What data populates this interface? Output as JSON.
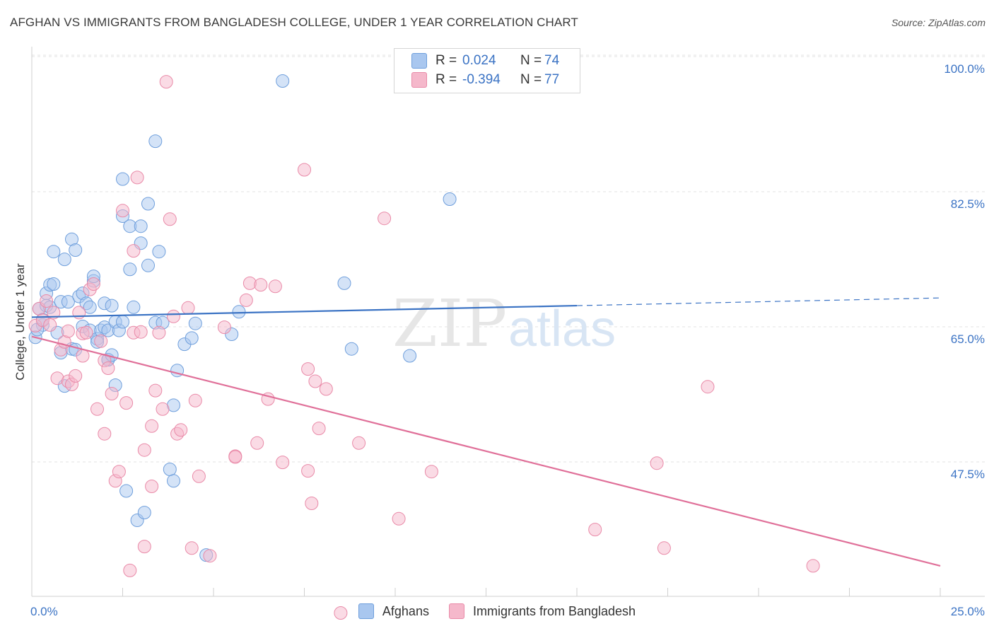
{
  "title": "AFGHAN VS IMMIGRANTS FROM BANGLADESH COLLEGE, UNDER 1 YEAR CORRELATION CHART",
  "source": "Source: ZipAtlas.com",
  "watermark": {
    "zip": "ZIP",
    "atlas": "atlas"
  },
  "legend": {
    "rows": [
      {
        "r_label": "R =",
        "r_value": "0.024",
        "n_label": "N =",
        "n_value": "74",
        "color": "#a9c7ef"
      },
      {
        "r_label": "R =",
        "r_value": "-0.394",
        "n_label": "N =",
        "n_value": "77",
        "color": "#f5b8cb"
      }
    ]
  },
  "bottom_legend": [
    {
      "label": "Afghans",
      "color": "#a9c7ef"
    },
    {
      "label": "Immigrants from Bangladesh",
      "color": "#f5b8cb"
    }
  ],
  "chart_data": {
    "type": "scatter",
    "title": "AFGHAN VS IMMIGRANTS FROM BANGLADESH COLLEGE, UNDER 1 YEAR CORRELATION CHART",
    "xlabel": "",
    "ylabel": "College, Under 1 year",
    "xlim": [
      0,
      25
    ],
    "ylim": [
      30,
      102
    ],
    "x_tick_labels": [
      "0.0%",
      "25.0%"
    ],
    "y_ticks": [
      47.5,
      65.0,
      82.5,
      100.0
    ],
    "y_tick_labels": [
      "47.5%",
      "65.0%",
      "82.5%",
      "100.0%"
    ],
    "grid": true,
    "series": [
      {
        "name": "Afghans",
        "color": "#a9c7ef",
        "stroke": "#6f9fdc",
        "trend": {
          "x": [
            0,
            15
          ],
          "y": [
            67.8,
            69.3
          ],
          "color": "#3b73c4",
          "dashed_extension": {
            "x": [
              15,
              25
            ],
            "y": [
              69.3,
              70.3
            ]
          }
        },
        "points": [
          [
            0.1,
            65.2
          ],
          [
            0.2,
            68.9
          ],
          [
            0.3,
            66.8
          ],
          [
            0.3,
            67.5
          ],
          [
            0.4,
            70.9
          ],
          [
            0.4,
            69.3
          ],
          [
            0.5,
            72.0
          ],
          [
            0.5,
            69.1
          ],
          [
            0.6,
            76.3
          ],
          [
            0.6,
            72.1
          ],
          [
            0.7,
            65.8
          ],
          [
            0.8,
            63.2
          ],
          [
            0.8,
            69.8
          ],
          [
            0.9,
            58.9
          ],
          [
            0.9,
            75.3
          ],
          [
            1.0,
            69.8
          ],
          [
            1.1,
            77.9
          ],
          [
            1.1,
            63.7
          ],
          [
            1.2,
            76.5
          ],
          [
            1.2,
            63.6
          ],
          [
            1.3,
            70.5
          ],
          [
            1.4,
            70.9
          ],
          [
            1.4,
            66.6
          ],
          [
            1.5,
            69.6
          ],
          [
            1.6,
            69.1
          ],
          [
            1.6,
            66.1
          ],
          [
            1.7,
            72.5
          ],
          [
            1.7,
            73.1
          ],
          [
            1.8,
            65.0
          ],
          [
            1.8,
            64.6
          ],
          [
            1.9,
            66.1
          ],
          [
            2.0,
            69.6
          ],
          [
            2.0,
            66.5
          ],
          [
            2.1,
            62.3
          ],
          [
            2.1,
            66.1
          ],
          [
            2.1,
            62.3
          ],
          [
            2.2,
            69.3
          ],
          [
            2.2,
            62.9
          ],
          [
            2.3,
            59.0
          ],
          [
            2.3,
            67.2
          ],
          [
            2.4,
            66.1
          ],
          [
            2.5,
            67.2
          ],
          [
            2.5,
            80.9
          ],
          [
            2.5,
            85.7
          ],
          [
            2.6,
            45.3
          ],
          [
            2.7,
            79.6
          ],
          [
            2.7,
            74.0
          ],
          [
            2.8,
            69.1
          ],
          [
            2.9,
            41.5
          ],
          [
            3.0,
            79.6
          ],
          [
            3.0,
            77.4
          ],
          [
            3.1,
            42.5
          ],
          [
            3.2,
            74.5
          ],
          [
            3.2,
            82.5
          ],
          [
            3.4,
            67.1
          ],
          [
            3.4,
            90.6
          ],
          [
            3.5,
            76.3
          ],
          [
            3.6,
            67.1
          ],
          [
            3.8,
            48.1
          ],
          [
            3.9,
            56.4
          ],
          [
            3.9,
            46.6
          ],
          [
            4.0,
            60.9
          ],
          [
            4.2,
            64.3
          ],
          [
            4.4,
            65.1
          ],
          [
            4.5,
            67.0
          ],
          [
            4.8,
            37.0
          ],
          [
            5.5,
            65.6
          ],
          [
            5.7,
            68.5
          ],
          [
            6.9,
            98.4
          ],
          [
            8.6,
            72.2
          ],
          [
            8.8,
            63.7
          ],
          [
            10.4,
            62.8
          ],
          [
            11.5,
            83.1
          ],
          [
            0.15,
            66.2
          ]
        ]
      },
      {
        "name": "Immigrants from Bangladesh",
        "color": "#f5b8cb",
        "stroke": "#e98aa8",
        "trend": {
          "x": [
            0,
            25
          ],
          "y": [
            65.3,
            35.6
          ],
          "color": "#e07099"
        },
        "points": [
          [
            0.1,
            66.7
          ],
          [
            0.2,
            68.9
          ],
          [
            0.3,
            67.4
          ],
          [
            0.4,
            69.9
          ],
          [
            0.5,
            66.8
          ],
          [
            0.6,
            68.4
          ],
          [
            0.7,
            59.9
          ],
          [
            0.8,
            63.6
          ],
          [
            0.9,
            64.6
          ],
          [
            1.0,
            66.0
          ],
          [
            1.0,
            59.5
          ],
          [
            1.1,
            59.1
          ],
          [
            1.2,
            60.2
          ],
          [
            1.3,
            68.4
          ],
          [
            1.4,
            62.8
          ],
          [
            1.4,
            65.7
          ],
          [
            1.5,
            65.8
          ],
          [
            1.6,
            71.4
          ],
          [
            1.7,
            72.1
          ],
          [
            1.8,
            55.9
          ],
          [
            1.9,
            64.7
          ],
          [
            2.0,
            52.7
          ],
          [
            2.0,
            62.2
          ],
          [
            2.1,
            61.2
          ],
          [
            2.2,
            57.9
          ],
          [
            2.3,
            46.6
          ],
          [
            2.4,
            47.8
          ],
          [
            2.5,
            81.6
          ],
          [
            2.6,
            56.7
          ],
          [
            2.7,
            35.0
          ],
          [
            2.8,
            76.4
          ],
          [
            2.8,
            65.8
          ],
          [
            2.9,
            85.9
          ],
          [
            3.0,
            65.9
          ],
          [
            3.1,
            38.1
          ],
          [
            3.1,
            50.6
          ],
          [
            3.3,
            53.7
          ],
          [
            3.3,
            45.9
          ],
          [
            3.4,
            58.3
          ],
          [
            3.5,
            65.8
          ],
          [
            3.6,
            55.9
          ],
          [
            3.7,
            98.3
          ],
          [
            3.8,
            80.5
          ],
          [
            3.9,
            67.9
          ],
          [
            4.0,
            52.7
          ],
          [
            4.1,
            53.2
          ],
          [
            4.3,
            69.0
          ],
          [
            4.4,
            37.9
          ],
          [
            4.5,
            57.0
          ],
          [
            4.6,
            47.2
          ],
          [
            4.9,
            36.9
          ],
          [
            5.3,
            66.5
          ],
          [
            5.6,
            49.8
          ],
          [
            5.6,
            49.7
          ],
          [
            5.9,
            70.0
          ],
          [
            6.0,
            72.2
          ],
          [
            6.2,
            51.5
          ],
          [
            6.3,
            72.0
          ],
          [
            6.5,
            57.2
          ],
          [
            6.7,
            71.8
          ],
          [
            6.9,
            49.0
          ],
          [
            7.5,
            86.9
          ],
          [
            7.6,
            47.9
          ],
          [
            7.6,
            61.1
          ],
          [
            7.7,
            43.7
          ],
          [
            7.8,
            59.5
          ],
          [
            7.9,
            53.4
          ],
          [
            8.1,
            58.5
          ],
          [
            8.5,
            29.5
          ],
          [
            9.0,
            51.5
          ],
          [
            9.7,
            80.6
          ],
          [
            10.1,
            41.7
          ],
          [
            11.0,
            47.8
          ],
          [
            15.5,
            40.3
          ],
          [
            17.2,
            48.9
          ],
          [
            17.4,
            37.9
          ],
          [
            18.6,
            58.8
          ],
          [
            21.5,
            35.6
          ]
        ]
      }
    ]
  }
}
